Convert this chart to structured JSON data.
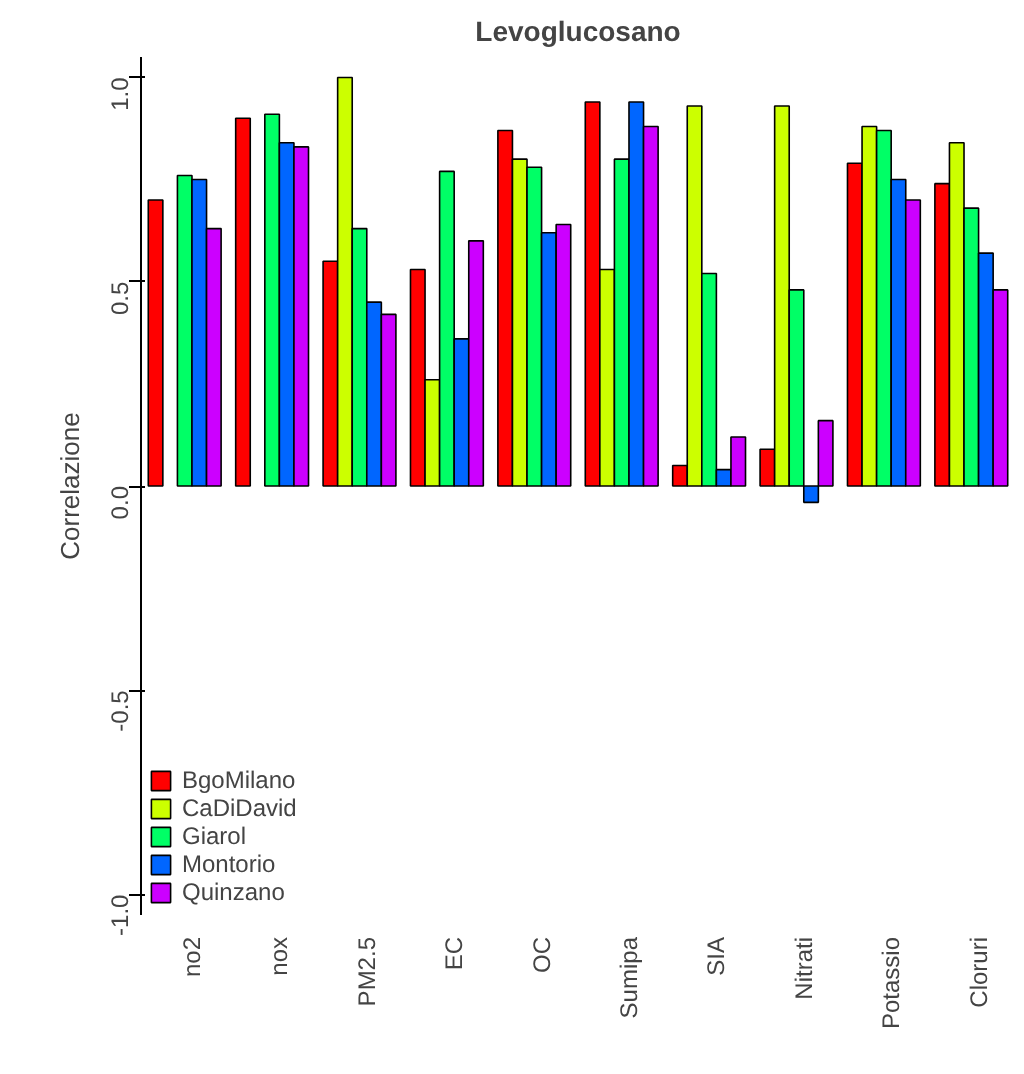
{
  "chart_data": {
    "type": "bar",
    "title": "Levoglucosano",
    "ylabel": "Correlazione",
    "categories": [
      "no2",
      "nox",
      "PM2.5",
      "EC",
      "OC",
      "Sumipa",
      "SIA",
      "Nitrati",
      "Potassio",
      "Cloruri"
    ],
    "series": [
      {
        "name": "BgoMilano",
        "color": "#ff0000",
        "values": [
          0.7,
          0.9,
          0.55,
          0.53,
          0.87,
          0.94,
          0.05,
          0.09,
          0.79,
          0.74
        ]
      },
      {
        "name": "CaDiDavid",
        "color": "#ccff00",
        "values": [
          null,
          null,
          1.0,
          0.26,
          0.8,
          0.53,
          0.93,
          0.93,
          0.88,
          0.84
        ]
      },
      {
        "name": "Giarol",
        "color": "#00ff66",
        "values": [
          0.76,
          0.91,
          0.63,
          0.77,
          0.78,
          0.8,
          0.52,
          0.48,
          0.87,
          0.68
        ]
      },
      {
        "name": "Montorio",
        "color": "#0066ff",
        "values": [
          0.75,
          0.84,
          0.45,
          0.36,
          0.62,
          0.94,
          0.04,
          -0.04,
          0.75,
          0.57
        ]
      },
      {
        "name": "Quinzano",
        "color": "#cc00ff",
        "values": [
          0.63,
          0.83,
          0.42,
          0.6,
          0.64,
          0.88,
          0.12,
          0.16,
          0.7,
          0.48
        ]
      }
    ],
    "ylim": [
      -1.05,
      1.05
    ],
    "yticks": [
      {
        "value": -1,
        "label": "-1.0"
      },
      {
        "value": -0.5,
        "label": "-0.5"
      },
      {
        "value": 0,
        "label": "0.0"
      },
      {
        "value": 0.5,
        "label": "0.5"
      },
      {
        "value": 1,
        "label": "1.0"
      }
    ],
    "grid": false,
    "legend": "bottom left"
  }
}
